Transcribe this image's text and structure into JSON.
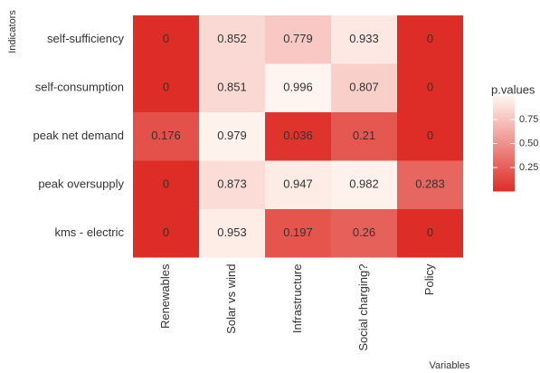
{
  "chart_data": {
    "type": "heatmap",
    "x_label": "Variables",
    "y_label": "Indicators",
    "categories": [
      "Renewables",
      "Solar vs wind",
      "Infrastructure",
      "Social charging?",
      "Policy"
    ],
    "rows": [
      "self-sufficiency",
      "self-consumption",
      "peak net demand",
      "peak oversupply",
      "kms - electric"
    ],
    "values": [
      [
        0,
        0.852,
        0.779,
        0.933,
        0
      ],
      [
        0,
        0.851,
        0.996,
        0.807,
        0
      ],
      [
        0.176,
        0.979,
        0.036,
        0.21,
        0
      ],
      [
        0,
        0.873,
        0.947,
        0.982,
        0.283
      ],
      [
        0,
        0.953,
        0.197,
        0.26,
        0
      ]
    ],
    "legend_title": "p.values",
    "clim": [
      0,
      0.996
    ],
    "cticks": [
      0.25,
      {
        "value": 0.5,
        "label": "0.50"
      },
      0.75
    ],
    "low_color": "#de2d26",
    "high_color": "#fff5f0"
  }
}
